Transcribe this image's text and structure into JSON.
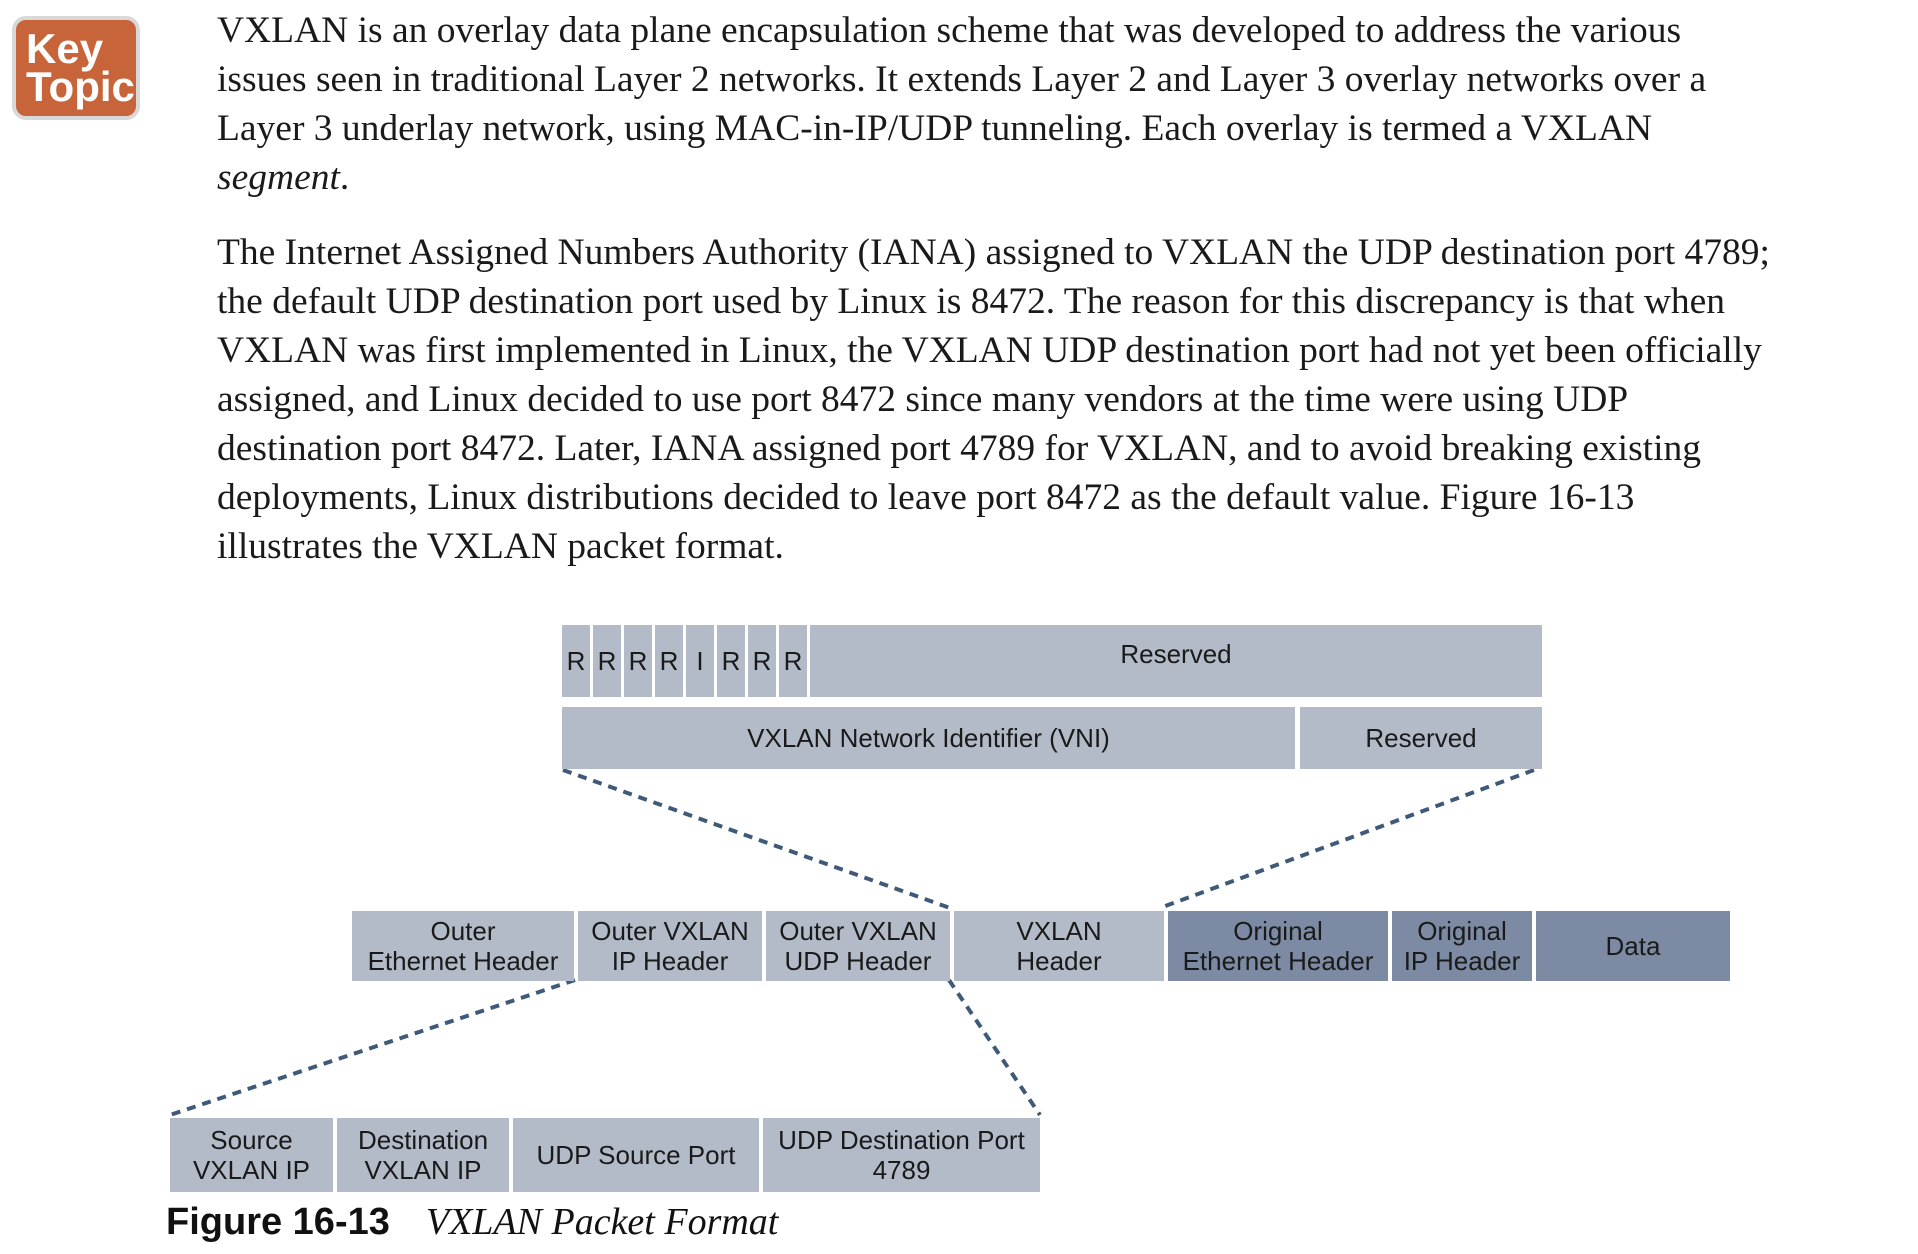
{
  "key_topic": {
    "line1": "Key",
    "line2": "Topic"
  },
  "paragraph1": {
    "text": "VXLAN is an overlay data plane encapsulation scheme that was developed to address the various issues seen in traditional Layer 2 networks. It extends Layer 2 and Layer 3 overlay networks over a Layer 3 underlay network, using MAC-in-IP/UDP tunneling. Each overlay is termed a VXLAN ",
    "emphasis": "segment",
    "end": "."
  },
  "paragraph2": "The Internet Assigned Numbers Authority (IANA) assigned to VXLAN the UDP destination port 4789; the default UDP destination port used by Linux is 8472. The reason for this discrepancy is that when VXLAN was first implemented in Linux, the VXLAN UDP destination port had not yet been officially assigned, and Linux decided to use port 8472 since many vendors at the time were using UDP destination port 8472. Later, IANA assigned port 4789 for VXLAN, and to avoid breaking existing deployments, Linux distributions decided to leave port 8472 as the default value. Figure 16-13 illustrates the VXLAN packet format.",
  "figure": {
    "vxlan_header_flags": [
      "R",
      "R",
      "R",
      "R",
      "I",
      "R",
      "R",
      "R"
    ],
    "vxlan_header_reserved_1": "Reserved",
    "vxlan_header_vni": "VXLAN Network Identifier (VNI)",
    "vxlan_header_reserved_2": "Reserved",
    "packet_fields": [
      "Outer\nEthernet Header",
      "Outer VXLAN\nIP Header",
      "Outer VXLAN\nUDP Header",
      "VXLAN\nHeader",
      "Original\nEthernet Header",
      "Original\nIP Header",
      "Data"
    ],
    "outer_detail_fields": [
      "Source\nVXLAN IP",
      "Destination\nVXLAN IP",
      "UDP Source Port",
      "UDP Destination Port\n4789"
    ],
    "colors": {
      "light": "#b4bbc8",
      "dark": "#7c8ba3",
      "dash": "#3f5a78"
    }
  },
  "caption": {
    "number": "Figure 16-13",
    "title": "VXLAN Packet Format"
  }
}
